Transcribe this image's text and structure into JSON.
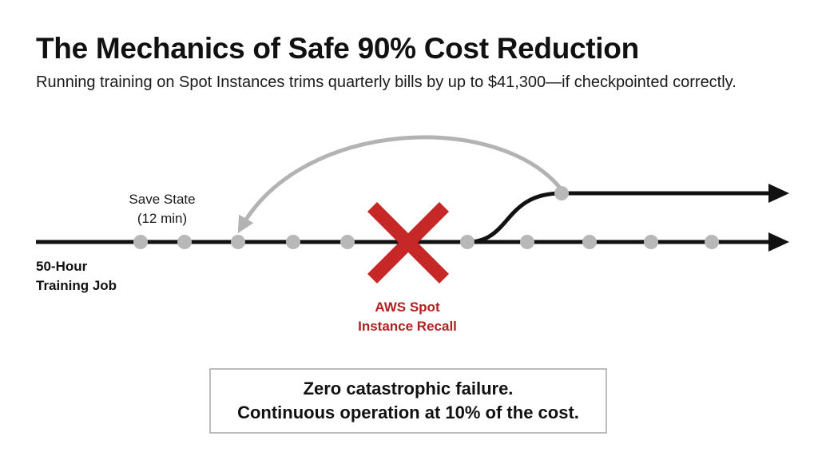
{
  "header": {
    "title": "The Mechanics of Safe 90% Cost Reduction",
    "subtitle": "Running training on Spot Instances trims quarterly bills by up to $41,300—if checkpointed correctly."
  },
  "diagram": {
    "save_state_line1": "Save State",
    "save_state_line2": "(12 min)",
    "job_label_line1": "50-Hour",
    "job_label_line2": "Training Job",
    "recall_line1": "AWS Spot",
    "recall_line2": "Instance Recall",
    "colors": {
      "timeline": "#111111",
      "checkpoint": "#b8b8b8",
      "failure": "#c62828",
      "rollback_arrow": "#b3b3b3"
    },
    "icons": {
      "failure": "cross-icon",
      "line_end": "arrow-head-icon"
    }
  },
  "callout": {
    "line1": "Zero catastrophic failure.",
    "line2": "Continuous operation at 10% of the cost."
  }
}
